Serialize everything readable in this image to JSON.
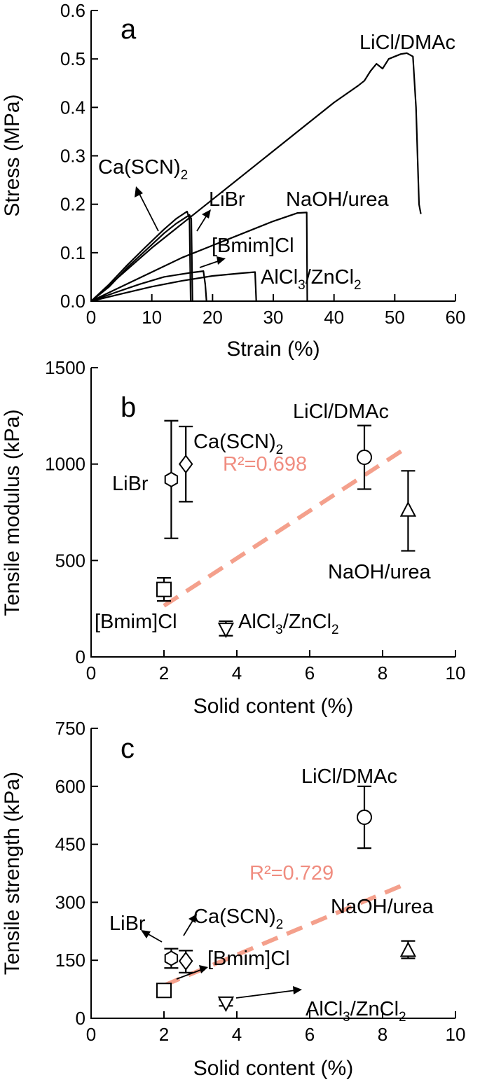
{
  "chart_data": [
    {
      "panel": "a",
      "type": "line",
      "xlabel": "Strain (%)",
      "ylabel": "Stress (MPa)",
      "xlim": [
        0,
        60
      ],
      "ylim": [
        0,
        0.6
      ],
      "xticks": [
        "0",
        "10",
        "20",
        "30",
        "40",
        "50",
        "60"
      ],
      "yticks": [
        "0.0",
        "0.1",
        "0.2",
        "0.3",
        "0.4",
        "0.5",
        "0.6"
      ],
      "series": [
        {
          "name": "LiCl/DMAc",
          "x": [
            0,
            5,
            10,
            15,
            20,
            25,
            30,
            35,
            40,
            44,
            45,
            46,
            47,
            48,
            49,
            50,
            51,
            52,
            53,
            53.5,
            54,
            54.3
          ],
          "y": [
            0,
            0.055,
            0.11,
            0.16,
            0.21,
            0.26,
            0.31,
            0.36,
            0.41,
            0.445,
            0.455,
            0.475,
            0.49,
            0.48,
            0.5,
            0.505,
            0.51,
            0.512,
            0.505,
            0.4,
            0.2,
            0.18
          ]
        },
        {
          "name": "NaOH/urea",
          "x": [
            0,
            5,
            10,
            15,
            20,
            25,
            30,
            34,
            35.5,
            35.6
          ],
          "y": [
            0,
            0.03,
            0.06,
            0.09,
            0.115,
            0.14,
            0.165,
            0.182,
            0.183,
            0.0
          ]
        },
        {
          "name": "Ca(SCN)2",
          "x": [
            0,
            3,
            6,
            9,
            12,
            14,
            15.8,
            16.2,
            16.4
          ],
          "y": [
            0,
            0.035,
            0.075,
            0.112,
            0.148,
            0.17,
            0.185,
            0.17,
            0.0
          ]
        },
        {
          "name": "LiBr",
          "x": [
            0,
            3,
            6,
            9,
            12,
            14,
            16.2,
            16.5,
            16.7
          ],
          "y": [
            0,
            0.03,
            0.07,
            0.105,
            0.14,
            0.16,
            0.178,
            0.17,
            0.0
          ]
        },
        {
          "name": "[Bmim]Cl",
          "x": [
            0,
            4,
            8,
            12,
            16,
            18.5,
            18.8,
            19.0
          ],
          "y": [
            0,
            0.018,
            0.035,
            0.05,
            0.058,
            0.062,
            0.035,
            0.0
          ]
        },
        {
          "name": "AlCl3/ZnCl2",
          "x": [
            0,
            5,
            10,
            15,
            20,
            25,
            27,
            27.2
          ],
          "y": [
            0,
            0.015,
            0.03,
            0.042,
            0.052,
            0.058,
            0.06,
            0.0
          ]
        }
      ],
      "annotations": [
        "LiCl/DMAc",
        "Ca(SCN)",
        "2",
        "LiBr",
        "NaOH/urea",
        "[Bmim]Cl",
        "AlCl",
        "3",
        "/ZnCl",
        "2"
      ]
    },
    {
      "panel": "b",
      "type": "scatter",
      "xlabel": "Solid content (%)",
      "ylabel": "Tensile modulus (kPa)",
      "xlim": [
        0,
        10
      ],
      "ylim": [
        0,
        1500
      ],
      "xticks": [
        "0",
        "2",
        "4",
        "6",
        "8",
        "10"
      ],
      "yticks": [
        "0",
        "500",
        "1000",
        "1500"
      ],
      "points": [
        {
          "name": "LiBr",
          "marker": "hexagon",
          "x": 2.2,
          "y": 920,
          "yerr_low": 615,
          "yerr_high": 1225
        },
        {
          "name": "Ca(SCN)2",
          "marker": "diamond",
          "x": 2.6,
          "y": 1000,
          "yerr_low": 805,
          "yerr_high": 1195
        },
        {
          "name": "[Bmim]Cl",
          "marker": "square",
          "x": 2.0,
          "y": 350,
          "yerr_low": 290,
          "yerr_high": 410
        },
        {
          "name": "AlCl3/ZnCl2",
          "marker": "triangle-down",
          "x": 3.7,
          "y": 145,
          "yerr_low": 110,
          "yerr_high": 185
        },
        {
          "name": "LiCl/DMAc",
          "marker": "circle",
          "x": 7.5,
          "y": 1035,
          "yerr_low": 870,
          "yerr_high": 1200
        },
        {
          "name": "NaOH/urea",
          "marker": "triangle-up",
          "x": 8.7,
          "y": 760,
          "yerr_low": 550,
          "yerr_high": 965
        }
      ],
      "fit": {
        "x": [
          2.0,
          8.7
        ],
        "y": [
          265,
          1090
        ],
        "r2_label": "R²=0.698"
      },
      "labels": {
        "LiBr": "LiBr",
        "Ca": "Ca(SCN)",
        "Ca_sub": "2",
        "Bmim": "[Bmim]Cl",
        "Al": "AlCl",
        "Al_sub1": "3",
        "Zn": "/ZnCl",
        "Zn_sub2": "2",
        "LiCl": "LiCl/DMAc",
        "NaOH": "NaOH/urea"
      }
    },
    {
      "panel": "c",
      "type": "scatter",
      "xlabel": "Solid content (%)",
      "ylabel": "Tensile strength (kPa)",
      "xlim": [
        0,
        10
      ],
      "ylim": [
        0,
        750
      ],
      "xticks": [
        "0",
        "2",
        "4",
        "6",
        "8",
        "10"
      ],
      "yticks": [
        "0",
        "150",
        "300",
        "450",
        "600",
        "750"
      ],
      "points": [
        {
          "name": "LiBr",
          "marker": "hexagon",
          "x": 2.2,
          "y": 155,
          "yerr_low": 130,
          "yerr_high": 180
        },
        {
          "name": "Ca(SCN)2",
          "marker": "diamond",
          "x": 2.6,
          "y": 148,
          "yerr_low": 118,
          "yerr_high": 175
        },
        {
          "name": "[Bmim]Cl",
          "marker": "square",
          "x": 2.0,
          "y": 72,
          "yerr_low": 62,
          "yerr_high": 82
        },
        {
          "name": "AlCl3/ZnCl2",
          "marker": "triangle-down",
          "x": 3.7,
          "y": 40,
          "yerr_low": 32,
          "yerr_high": 48
        },
        {
          "name": "LiCl/DMAc",
          "marker": "circle",
          "x": 7.5,
          "y": 520,
          "yerr_low": 440,
          "yerr_high": 600
        },
        {
          "name": "NaOH/urea",
          "marker": "triangle-up",
          "x": 8.7,
          "y": 175,
          "yerr_low": 155,
          "yerr_high": 200
        }
      ],
      "fit": {
        "x": [
          2.0,
          8.7
        ],
        "y": [
          85,
          350
        ],
        "r2_label": "R²=0.729"
      },
      "labels": {
        "LiBr": "LiBr",
        "Ca": "Ca(SCN)",
        "Ca_sub": "2",
        "Bmim": "[Bmim]Cl",
        "Al": "AlCl",
        "Al_sub1": "3",
        "Zn": "/ZnCl",
        "Zn_sub2": "2",
        "LiCl": "LiCl/DMAc",
        "NaOH": "NaOH/urea"
      }
    }
  ]
}
